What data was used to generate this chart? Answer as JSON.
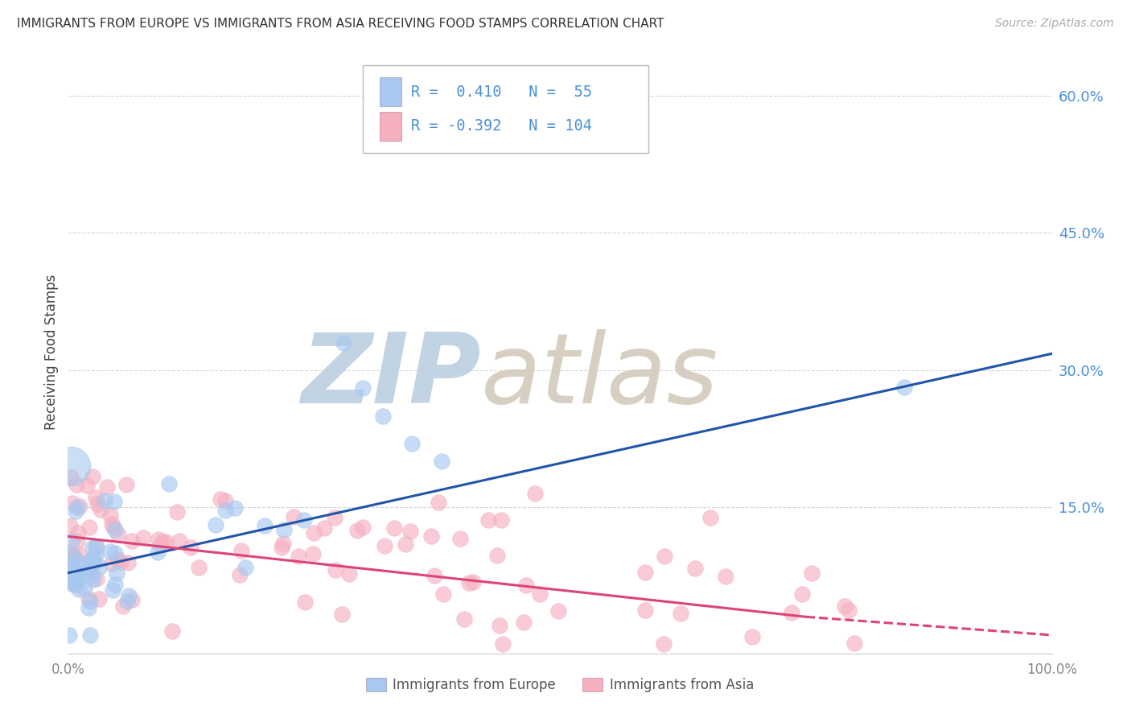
{
  "title": "IMMIGRANTS FROM EUROPE VS IMMIGRANTS FROM ASIA RECEIVING FOOD STAMPS CORRELATION CHART",
  "source": "Source: ZipAtlas.com",
  "ylabel": "Receiving Food Stamps",
  "xlim": [
    0,
    1.0
  ],
  "ylim": [
    -0.01,
    0.65
  ],
  "europe_R": 0.41,
  "europe_N": 55,
  "asia_R": -0.392,
  "asia_N": 104,
  "europe_color": "#a8c8f0",
  "asia_color": "#f5b0c0",
  "europe_line_color": "#2255aa",
  "asia_line_color": "#dd4477",
  "watermark_zip_color": "#b8cce0",
  "watermark_atlas_color": "#d0c8b8",
  "legend_label_europe": "Immigrants from Europe",
  "legend_label_asia": "Immigrants from Asia",
  "background_color": "#ffffff",
  "grid_color": "#cccccc",
  "title_color": "#333333",
  "axis_label_color": "#444444",
  "right_axis_label_color": "#4a90d9",
  "tick_label_color": "#888888",
  "eu_line_x0": 0.0,
  "eu_line_y0": 0.078,
  "eu_line_x1": 1.0,
  "eu_line_y1": 0.318,
  "as_line_x0": 0.0,
  "as_line_y0": 0.118,
  "as_line_x1": 0.75,
  "as_line_y1": 0.03,
  "as_line_dash_x0": 0.75,
  "as_line_dash_y0": 0.03,
  "as_line_dash_x1": 1.0,
  "as_line_dash_y1": 0.01
}
